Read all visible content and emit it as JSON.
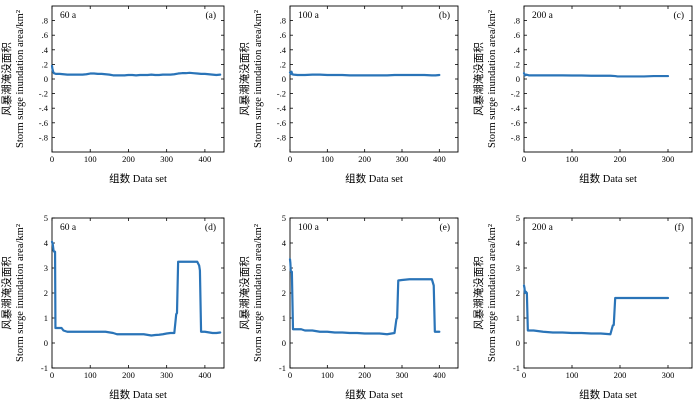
{
  "figure": {
    "panels_text": [
      "60 a",
      "(a)",
      "100 a",
      "(b)",
      "200 a",
      "(c)",
      "60 a",
      "(d)",
      "100 a",
      "(e)",
      "200 a",
      "(f)"
    ]
  },
  "chart_data": [
    {
      "type": "line",
      "panel_label": "(a)",
      "annotation": "60 a",
      "xlabel": "组数 Data set",
      "ylabel": "风暴潮淹没面积",
      "ylabel_en": "Storm surge inundation area/km²",
      "xlim": [
        0,
        450
      ],
      "ylim": [
        -1,
        1
      ],
      "xticks": [
        0,
        100,
        200,
        300,
        400
      ],
      "yticks": [
        -0.8,
        -0.6,
        -0.4,
        -0.2,
        0,
        0.2,
        0.4,
        0.6,
        0.8
      ],
      "color": "#2a74b8",
      "series": [
        {
          "x": [
            0,
            1,
            3,
            5,
            10,
            20,
            30,
            40,
            50,
            60,
            70,
            80,
            90,
            100,
            110,
            120,
            130,
            140,
            150,
            160,
            170,
            180,
            190,
            200,
            210,
            220,
            230,
            240,
            250,
            260,
            270,
            280,
            290,
            300,
            310,
            320,
            330,
            340,
            350,
            360,
            370,
            380,
            390,
            400,
            410,
            420,
            430,
            440
          ],
          "y": [
            0.18,
            0.14,
            0.1,
            0.08,
            0.07,
            0.07,
            0.065,
            0.06,
            0.06,
            0.06,
            0.06,
            0.06,
            0.065,
            0.075,
            0.075,
            0.07,
            0.07,
            0.065,
            0.06,
            0.05,
            0.05,
            0.05,
            0.05,
            0.055,
            0.055,
            0.05,
            0.055,
            0.055,
            0.055,
            0.06,
            0.055,
            0.055,
            0.06,
            0.06,
            0.06,
            0.065,
            0.075,
            0.08,
            0.08,
            0.085,
            0.08,
            0.075,
            0.07,
            0.07,
            0.065,
            0.06,
            0.055,
            0.06
          ]
        }
      ]
    },
    {
      "type": "line",
      "panel_label": "(b)",
      "annotation": "100 a",
      "xlabel": "组数 Data set",
      "ylabel": "风暴潮淹没面积",
      "ylabel_en": "Storm surge inundation area/km²",
      "xlim": [
        0,
        450
      ],
      "ylim": [
        -1,
        1
      ],
      "xticks": [
        0,
        100,
        200,
        300,
        400
      ],
      "yticks": [
        -0.8,
        -0.6,
        -0.4,
        -0.2,
        0,
        0.2,
        0.4,
        0.6,
        0.8
      ],
      "color": "#2a74b8",
      "series": [
        {
          "x": [
            0,
            2,
            4,
            6,
            10,
            20,
            40,
            60,
            80,
            100,
            120,
            140,
            160,
            180,
            200,
            220,
            240,
            260,
            280,
            300,
            320,
            340,
            360,
            380,
            390,
            400
          ],
          "y": [
            0.09,
            0.07,
            0.1,
            0.065,
            0.06,
            0.055,
            0.055,
            0.06,
            0.06,
            0.055,
            0.055,
            0.055,
            0.05,
            0.05,
            0.05,
            0.05,
            0.05,
            0.05,
            0.055,
            0.055,
            0.055,
            0.055,
            0.055,
            0.05,
            0.05,
            0.055
          ]
        }
      ]
    },
    {
      "type": "line",
      "panel_label": "(c)",
      "annotation": "200 a",
      "xlabel": "组数 Data set",
      "ylabel": "风暴潮淹没面积",
      "ylabel_en": "Storm surge inundation area/km²",
      "xlim": [
        0,
        350
      ],
      "ylim": [
        -1,
        1
      ],
      "xticks": [
        0,
        100,
        200,
        300
      ],
      "yticks": [
        -0.8,
        -0.6,
        -0.4,
        -0.2,
        0,
        0.2,
        0.4,
        0.6,
        0.8
      ],
      "color": "#2a74b8",
      "series": [
        {
          "x": [
            0,
            2,
            5,
            10,
            20,
            40,
            60,
            80,
            100,
            120,
            140,
            160,
            180,
            190,
            195,
            210,
            230,
            250,
            270,
            290,
            300
          ],
          "y": [
            0.08,
            0.05,
            0.06,
            0.05,
            0.05,
            0.05,
            0.05,
            0.05,
            0.048,
            0.048,
            0.045,
            0.045,
            0.045,
            0.04,
            0.035,
            0.035,
            0.035,
            0.035,
            0.04,
            0.04,
            0.04
          ]
        }
      ]
    },
    {
      "type": "line",
      "panel_label": "(d)",
      "annotation": "60 a",
      "xlabel": "组数 Data set",
      "ylabel": "风暴潮淹没面积",
      "ylabel_en": "Storm surge inundation area/km²",
      "xlim": [
        0,
        450
      ],
      "ylim": [
        -1,
        5
      ],
      "xticks": [
        0,
        100,
        200,
        300,
        400
      ],
      "yticks": [
        -1,
        0,
        1,
        2,
        3,
        4,
        5
      ],
      "color": "#2a74b8",
      "series": [
        {
          "x": [
            0,
            2,
            4,
            6,
            8,
            9,
            10,
            20,
            25,
            30,
            40,
            50,
            60,
            80,
            100,
            120,
            140,
            160,
            170,
            180,
            200,
            220,
            240,
            260,
            270,
            280,
            290,
            300,
            310,
            320,
            325,
            327,
            330,
            340,
            360,
            380,
            385,
            387,
            390,
            395,
            400,
            420,
            430,
            440
          ],
          "y": [
            4.05,
            3.95,
            3.7,
            3.65,
            3.65,
            0.6,
            0.6,
            0.6,
            0.6,
            0.5,
            0.45,
            0.45,
            0.45,
            0.45,
            0.45,
            0.45,
            0.45,
            0.4,
            0.35,
            0.35,
            0.35,
            0.35,
            0.35,
            0.3,
            0.32,
            0.33,
            0.35,
            0.38,
            0.4,
            0.4,
            1.15,
            1.2,
            3.25,
            3.25,
            3.25,
            3.25,
            3.1,
            2.9,
            0.45,
            0.45,
            0.45,
            0.4,
            0.4,
            0.42
          ]
        }
      ]
    },
    {
      "type": "line",
      "panel_label": "(e)",
      "annotation": "100 a",
      "xlabel": "组数 Data set",
      "ylabel": "风暴潮淹没面积",
      "ylabel_en": "Storm surge inundation area/km²",
      "xlim": [
        0,
        450
      ],
      "ylim": [
        -1,
        5
      ],
      "xticks": [
        0,
        100,
        200,
        300,
        400
      ],
      "yticks": [
        -1,
        0,
        1,
        2,
        3,
        4,
        5
      ],
      "color": "#2a74b8",
      "series": [
        {
          "x": [
            0,
            1,
            2,
            3,
            5,
            8,
            10,
            30,
            40,
            60,
            80,
            100,
            120,
            140,
            160,
            180,
            200,
            220,
            240,
            260,
            280,
            285,
            287,
            290,
            300,
            320,
            340,
            360,
            380,
            385,
            388,
            390,
            395,
            400
          ],
          "y": [
            3.35,
            3.2,
            2.9,
            2.85,
            2.85,
            0.55,
            0.55,
            0.55,
            0.5,
            0.5,
            0.45,
            0.45,
            0.42,
            0.42,
            0.4,
            0.4,
            0.38,
            0.38,
            0.38,
            0.35,
            0.4,
            0.95,
            1.0,
            2.5,
            2.52,
            2.55,
            2.55,
            2.55,
            2.55,
            2.3,
            0.45,
            0.45,
            0.45,
            0.45
          ]
        }
      ]
    },
    {
      "type": "line",
      "panel_label": "(f)",
      "annotation": "200 a",
      "xlabel": "组数 Data set",
      "ylabel": "风暴潮淹没面积",
      "ylabel_en": "Storm surge inundation area/km²",
      "xlim": [
        0,
        350
      ],
      "ylim": [
        -1,
        5
      ],
      "xticks": [
        0,
        100,
        200,
        300
      ],
      "yticks": [
        -1,
        0,
        1,
        2,
        3,
        4,
        5
      ],
      "color": "#2a74b8",
      "series": [
        {
          "x": [
            0,
            1,
            2,
            4,
            6,
            8,
            10,
            20,
            40,
            60,
            80,
            100,
            120,
            140,
            160,
            180,
            185,
            187,
            190,
            200,
            220,
            240,
            260,
            280,
            300
          ],
          "y": [
            2.3,
            2.2,
            2.0,
            2.05,
            2.0,
            0.5,
            0.5,
            0.5,
            0.45,
            0.42,
            0.42,
            0.4,
            0.4,
            0.38,
            0.38,
            0.35,
            0.7,
            0.72,
            1.8,
            1.8,
            1.8,
            1.8,
            1.8,
            1.8,
            1.8
          ]
        }
      ]
    }
  ]
}
